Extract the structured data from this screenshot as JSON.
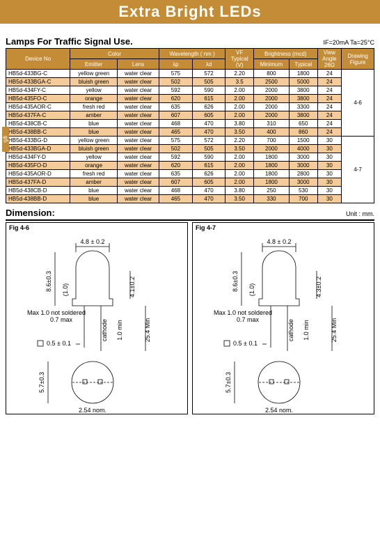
{
  "title": "Extra Bright LEDs",
  "section_title": "Lamps For Traffic Signal Use.",
  "conditions": "IF=20mA   Ta=25°C",
  "side_tab": "φ5",
  "headers": {
    "device": "Device No",
    "color": "Color",
    "emitter": "Emitter",
    "lens": "Lens",
    "wavelength": "Wavelength ( nm )",
    "lp": "λp",
    "ld": "λd",
    "vf": "VF\nTypical\n(V)",
    "brightness": "Brightness  (mcd)",
    "bmin": "Minimum",
    "btyp": "Typical",
    "view": "View\nAngle\n2θΩ",
    "fig": "Drawing\nFigure"
  },
  "rows": [
    {
      "dev": "HB5d-433BG-C",
      "em": "yellow green",
      "lens": "water clear",
      "lp": "575",
      "ld": "572",
      "vf": "2.20",
      "bmin": "800",
      "btyp": "1800",
      "ang": "24",
      "fig": "4-6",
      "figspan": 8,
      "cls": "odd"
    },
    {
      "dev": "HB5d-433BGA-C",
      "em": "bluish green",
      "lens": "water clear",
      "lp": "502",
      "ld": "505",
      "vf": "3.5",
      "bmin": "2500",
      "btyp": "5000",
      "ang": "24",
      "cls": "even"
    },
    {
      "dev": "HB5d-434FY-C",
      "em": "yellow",
      "lens": "water clear",
      "lp": "592",
      "ld": "590",
      "vf": "2.00",
      "bmin": "2000",
      "btyp": "3800",
      "ang": "24",
      "cls": "odd"
    },
    {
      "dev": "HB5d-435FO-C",
      "em": "orange",
      "lens": "water clear",
      "lp": "620",
      "ld": "615",
      "vf": "2.00",
      "bmin": "2000",
      "btyp": "3800",
      "ang": "24",
      "cls": "even"
    },
    {
      "dev": "HB5d-435AOR-C",
      "em": "fresh red",
      "lens": "water clear",
      "lp": "635",
      "ld": "626",
      "vf": "2.00",
      "bmin": "2000",
      "btyp": "3300",
      "ang": "24",
      "cls": "odd"
    },
    {
      "dev": "HB5d-437FA-C",
      "em": "amber",
      "lens": "water clear",
      "lp": "607",
      "ld": "605",
      "vf": "2.00",
      "bmin": "2000",
      "btyp": "3800",
      "ang": "24",
      "cls": "even"
    },
    {
      "dev": "HB5d-438CB-C",
      "em": "blue",
      "lens": "water clear",
      "lp": "468",
      "ld": "470",
      "vf": "3.80",
      "bmin": "310",
      "btyp": "650",
      "ang": "24",
      "cls": "odd"
    },
    {
      "dev": "HB5d-438BB-C",
      "em": "blue",
      "lens": "water clear",
      "lp": "465",
      "ld": "470",
      "vf": "3.50",
      "bmin": "400",
      "btyp": "860",
      "ang": "24",
      "cls": "even"
    },
    {
      "dev": "HB5d-433BG-D",
      "em": "yellow green",
      "lens": "water clear",
      "lp": "575",
      "ld": "572",
      "vf": "2.20",
      "bmin": "700",
      "btyp": "1500",
      "ang": "30",
      "fig": "4-7",
      "figspan": 8,
      "cls": "odd"
    },
    {
      "dev": "HB5d-433BGA-D",
      "em": "bluish green",
      "lens": "water clear",
      "lp": "502",
      "ld": "505",
      "vf": "3.50",
      "bmin": "2000",
      "btyp": "4000",
      "ang": "30",
      "cls": "even"
    },
    {
      "dev": "HB5d-434FY-D",
      "em": "yellow",
      "lens": "water clear",
      "lp": "592",
      "ld": "590",
      "vf": "2.00",
      "bmin": "1800",
      "btyp": "3000",
      "ang": "30",
      "cls": "odd"
    },
    {
      "dev": "HB5d-435FO-D",
      "em": "orange",
      "lens": "water clear",
      "lp": "620",
      "ld": "615",
      "vf": "2.00",
      "bmin": "1800",
      "btyp": "3000",
      "ang": "30",
      "cls": "even"
    },
    {
      "dev": "HB5d-435AOR-D",
      "em": "fresh red",
      "lens": "water clear",
      "lp": "635",
      "ld": "626",
      "vf": "2.00",
      "bmin": "1800",
      "btyp": "2800",
      "ang": "30",
      "cls": "odd"
    },
    {
      "dev": "HB5d-437FA-D",
      "em": "amber",
      "lens": "water clear",
      "lp": "607",
      "ld": "605",
      "vf": "2.00",
      "bmin": "1800",
      "btyp": "3000",
      "ang": "30",
      "cls": "even"
    },
    {
      "dev": "HB5d-438CB-D",
      "em": "blue",
      "lens": "water clear",
      "lp": "468",
      "ld": "470",
      "vf": "3.80",
      "bmin": "250",
      "btyp": "530",
      "ang": "30",
      "cls": "odd"
    },
    {
      "dev": "HB5d-438BB-D",
      "em": "blue",
      "lens": "water clear",
      "lp": "465",
      "ld": "470",
      "vf": "3.50",
      "bmin": "330",
      "btyp": "700",
      "ang": "30",
      "cls": "even"
    }
  ],
  "dimension_title": "Dimension:",
  "unit_label": "Unit : mm.",
  "fig46": {
    "label": "Fig 4-6",
    "w": "4.8 ± 0.2",
    "h": "8.6±0.3",
    "h2": "4.1±0.2",
    "h3": "(1.0)",
    "max": "Max 1.0\nnot soldered",
    "s07": "0.7\nmax",
    "cath": "cathode",
    "min1": "1.0 min",
    "min25": "25.4 Min",
    "s05": "0.5 ± 0.1",
    "pitch": "2.54\nnom.",
    "dia": "5.7±0.3"
  },
  "fig47": {
    "label": "Fig 4-7",
    "w": "4.8 ± 0.2",
    "h": "8.6±0.3",
    "h2": "4.3±0.2",
    "h3": "(1.0)",
    "max": "Max 1.0\nnot soldered",
    "s07": "0.7\nmax",
    "cath": "cathode",
    "min1": "1.0 min",
    "min25": "25.4 Min",
    "s05": "0.5 ± 0.1",
    "pitch": "2.54\nnom.",
    "dia": "5.7±0.3"
  },
  "colors": {
    "brand": "#c48c37",
    "row_alt": "#f6cb9a"
  }
}
